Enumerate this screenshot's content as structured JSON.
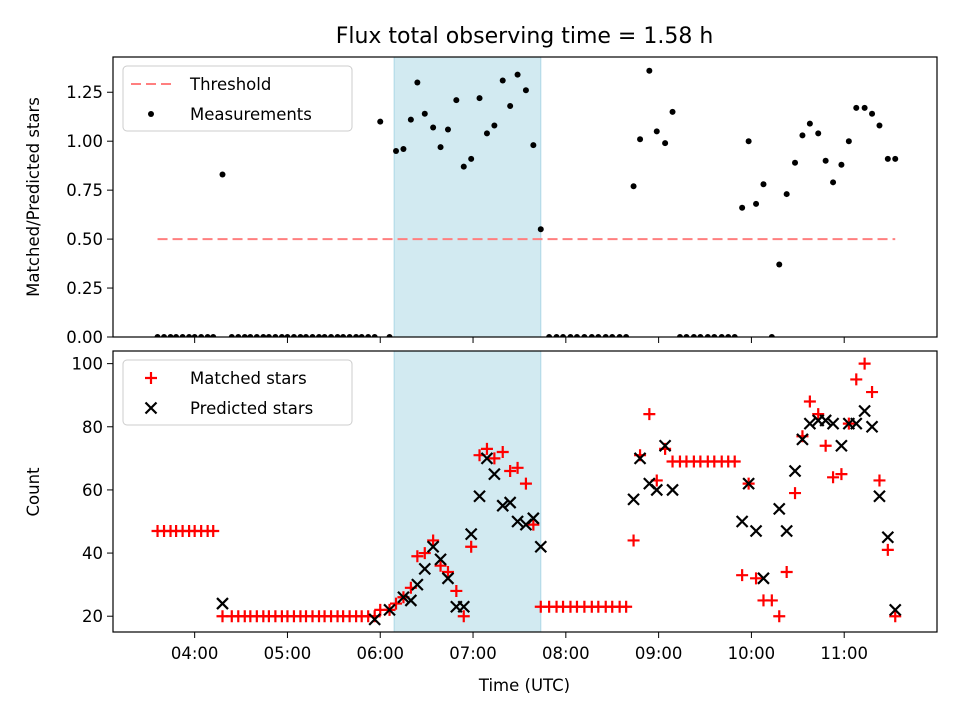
{
  "chart_data": [
    {
      "type": "scatter",
      "title": "Flux total observing time = 1.58 h",
      "ylabel": "Matched/Predicted stars",
      "xlabel": "",
      "xlim_hours": [
        3.12,
        12.0
      ],
      "ylim": [
        0,
        1.43
      ],
      "yticks": [
        "0.00",
        "0.25",
        "0.50",
        "0.75",
        "1.00",
        "1.25"
      ],
      "shaded_interval_hours": [
        6.15,
        7.73
      ],
      "shade_color": "#add8e6",
      "legend_position": "upper left",
      "series": [
        {
          "name": "Threshold",
          "kind": "dashed-line",
          "color": "#ff7f7f",
          "x": [
            3.6,
            11.55
          ],
          "y": [
            0.5,
            0.5
          ]
        },
        {
          "name": "Measurements",
          "kind": "dot",
          "color": "#000000",
          "x": [
            3.6,
            3.67,
            3.74,
            3.8,
            3.87,
            3.94,
            4.0,
            4.07,
            4.14,
            4.2,
            4.3,
            4.4,
            4.47,
            4.54,
            4.6,
            4.67,
            4.74,
            4.8,
            4.87,
            4.94,
            5.0,
            5.07,
            5.14,
            5.2,
            5.27,
            5.34,
            5.4,
            5.47,
            5.54,
            5.6,
            5.67,
            5.74,
            5.8,
            5.87,
            5.94,
            6.0,
            6.1,
            6.17,
            6.25,
            6.33,
            6.4,
            6.48,
            6.57,
            6.65,
            6.73,
            6.82,
            6.9,
            6.98,
            7.07,
            7.15,
            7.23,
            7.32,
            7.4,
            7.48,
            7.57,
            7.65,
            7.73,
            7.82,
            7.9,
            7.97,
            8.05,
            8.12,
            8.2,
            8.28,
            8.35,
            8.43,
            8.5,
            8.58,
            8.65,
            8.73,
            8.8,
            8.9,
            8.98,
            9.07,
            9.15,
            9.23,
            9.3,
            9.38,
            9.45,
            9.53,
            9.6,
            9.68,
            9.75,
            9.82,
            9.9,
            9.97,
            10.05,
            10.13,
            10.22,
            10.3,
            10.38,
            10.47,
            10.55,
            10.63,
            10.72,
            10.8,
            10.88,
            10.97,
            11.05,
            11.13,
            11.22,
            11.3,
            11.38,
            11.47,
            11.55
          ],
          "y": [
            0,
            0,
            0,
            0,
            0,
            0,
            0,
            0,
            0,
            0,
            0.83,
            0,
            0,
            0,
            0,
            0,
            0,
            0,
            0,
            0,
            0,
            0,
            0,
            0,
            0,
            0,
            0,
            0,
            0,
            0,
            0,
            0,
            0,
            0,
            0,
            1.1,
            0,
            0.95,
            0.96,
            1.11,
            1.3,
            1.14,
            1.07,
            0.97,
            1.06,
            1.21,
            0.87,
            0.91,
            1.22,
            1.04,
            1.08,
            1.31,
            1.18,
            1.34,
            1.26,
            0.98,
            0.55,
            0,
            0,
            0,
            0,
            0,
            0,
            0,
            0,
            0,
            0,
            0,
            0,
            0.77,
            1.01,
            1.36,
            1.05,
            0.99,
            1.15,
            0,
            0,
            0,
            0,
            0,
            0,
            0,
            0,
            0,
            0.66,
            1.0,
            0.68,
            0.78,
            0,
            0.37,
            0.73,
            0.89,
            1.03,
            1.09,
            1.04,
            0.9,
            0.79,
            0.88,
            1.0,
            1.17,
            1.17,
            1.14,
            1.08,
            0.91,
            0.91
          ]
        }
      ]
    },
    {
      "type": "scatter",
      "title": "",
      "ylabel": "Count",
      "xlabel": "Time (UTC)",
      "xlim_hours": [
        3.12,
        12.0
      ],
      "ylim": [
        15,
        104
      ],
      "yticks": [
        "20",
        "40",
        "60",
        "80",
        "100"
      ],
      "xticks": [
        "04:00",
        "05:00",
        "06:00",
        "07:00",
        "08:00",
        "09:00",
        "10:00",
        "11:00"
      ],
      "shaded_interval_hours": [
        6.15,
        7.73
      ],
      "shade_color": "#add8e6",
      "legend_position": "upper left",
      "series": [
        {
          "name": "Matched stars",
          "kind": "plus",
          "color": "#ff0000",
          "x": [
            3.6,
            3.67,
            3.74,
            3.8,
            3.87,
            3.94,
            4.0,
            4.07,
            4.14,
            4.2,
            4.3,
            4.4,
            4.47,
            4.54,
            4.6,
            4.67,
            4.74,
            4.8,
            4.87,
            4.94,
            5.0,
            5.07,
            5.14,
            5.2,
            5.27,
            5.34,
            5.4,
            5.47,
            5.54,
            5.6,
            5.67,
            5.74,
            5.8,
            5.87,
            5.94,
            6.0,
            6.1,
            6.17,
            6.25,
            6.33,
            6.4,
            6.48,
            6.57,
            6.65,
            6.73,
            6.82,
            6.9,
            6.98,
            7.07,
            7.15,
            7.23,
            7.32,
            7.4,
            7.48,
            7.57,
            7.65,
            7.73,
            7.82,
            7.9,
            7.97,
            8.05,
            8.12,
            8.2,
            8.28,
            8.35,
            8.43,
            8.5,
            8.58,
            8.65,
            8.73,
            8.8,
            8.9,
            8.98,
            9.07,
            9.15,
            9.23,
            9.3,
            9.38,
            9.45,
            9.53,
            9.6,
            9.68,
            9.75,
            9.82,
            9.9,
            9.97,
            10.05,
            10.13,
            10.22,
            10.3,
            10.38,
            10.47,
            10.55,
            10.63,
            10.72,
            10.8,
            10.88,
            10.97,
            11.05,
            11.13,
            11.22,
            11.3,
            11.38,
            11.47,
            11.55
          ],
          "y": [
            47,
            47,
            47,
            47,
            47,
            47,
            47,
            47,
            47,
            47,
            20,
            20,
            20,
            20,
            20,
            20,
            20,
            20,
            20,
            20,
            20,
            20,
            20,
            20,
            20,
            20,
            20,
            20,
            20,
            20,
            20,
            20,
            20,
            20,
            20,
            22,
            22,
            24,
            26,
            29,
            39,
            40,
            44,
            36,
            34,
            28,
            20,
            42,
            71,
            73,
            70,
            72,
            66,
            67,
            62,
            49,
            23,
            23,
            23,
            23,
            23,
            23,
            23,
            23,
            23,
            23,
            23,
            23,
            23,
            44,
            71,
            84,
            63,
            73,
            69,
            69,
            69,
            69,
            69,
            69,
            69,
            69,
            69,
            69,
            33,
            62,
            32,
            25,
            25,
            20,
            34,
            59,
            77,
            88,
            84,
            74,
            64,
            65,
            81,
            95,
            100,
            91,
            63,
            41,
            20
          ]
        },
        {
          "name": "Predicted stars",
          "kind": "x",
          "color": "#000000",
          "x": [
            4.3,
            5.94,
            6.1,
            6.25,
            6.33,
            6.4,
            6.48,
            6.57,
            6.65,
            6.73,
            6.82,
            6.9,
            6.98,
            7.07,
            7.15,
            7.23,
            7.32,
            7.4,
            7.48,
            7.57,
            7.65,
            7.73,
            8.73,
            8.8,
            8.9,
            8.98,
            9.07,
            9.15,
            9.9,
            9.97,
            10.05,
            10.13,
            10.3,
            10.38,
            10.47,
            10.55,
            10.63,
            10.72,
            10.8,
            10.88,
            10.97,
            11.05,
            11.13,
            11.22,
            11.3,
            11.38,
            11.47,
            11.55
          ],
          "y": [
            24,
            19,
            22,
            26,
            25,
            30,
            35,
            42,
            38,
            32,
            23,
            23,
            46,
            58,
            70,
            65,
            55,
            56,
            50,
            49,
            51,
            42,
            57,
            70,
            62,
            60,
            74,
            60,
            50,
            62,
            47,
            32,
            54,
            47,
            66,
            76,
            81,
            82,
            82,
            81,
            74,
            81,
            81,
            85,
            80,
            58,
            45,
            22
          ]
        }
      ]
    }
  ]
}
